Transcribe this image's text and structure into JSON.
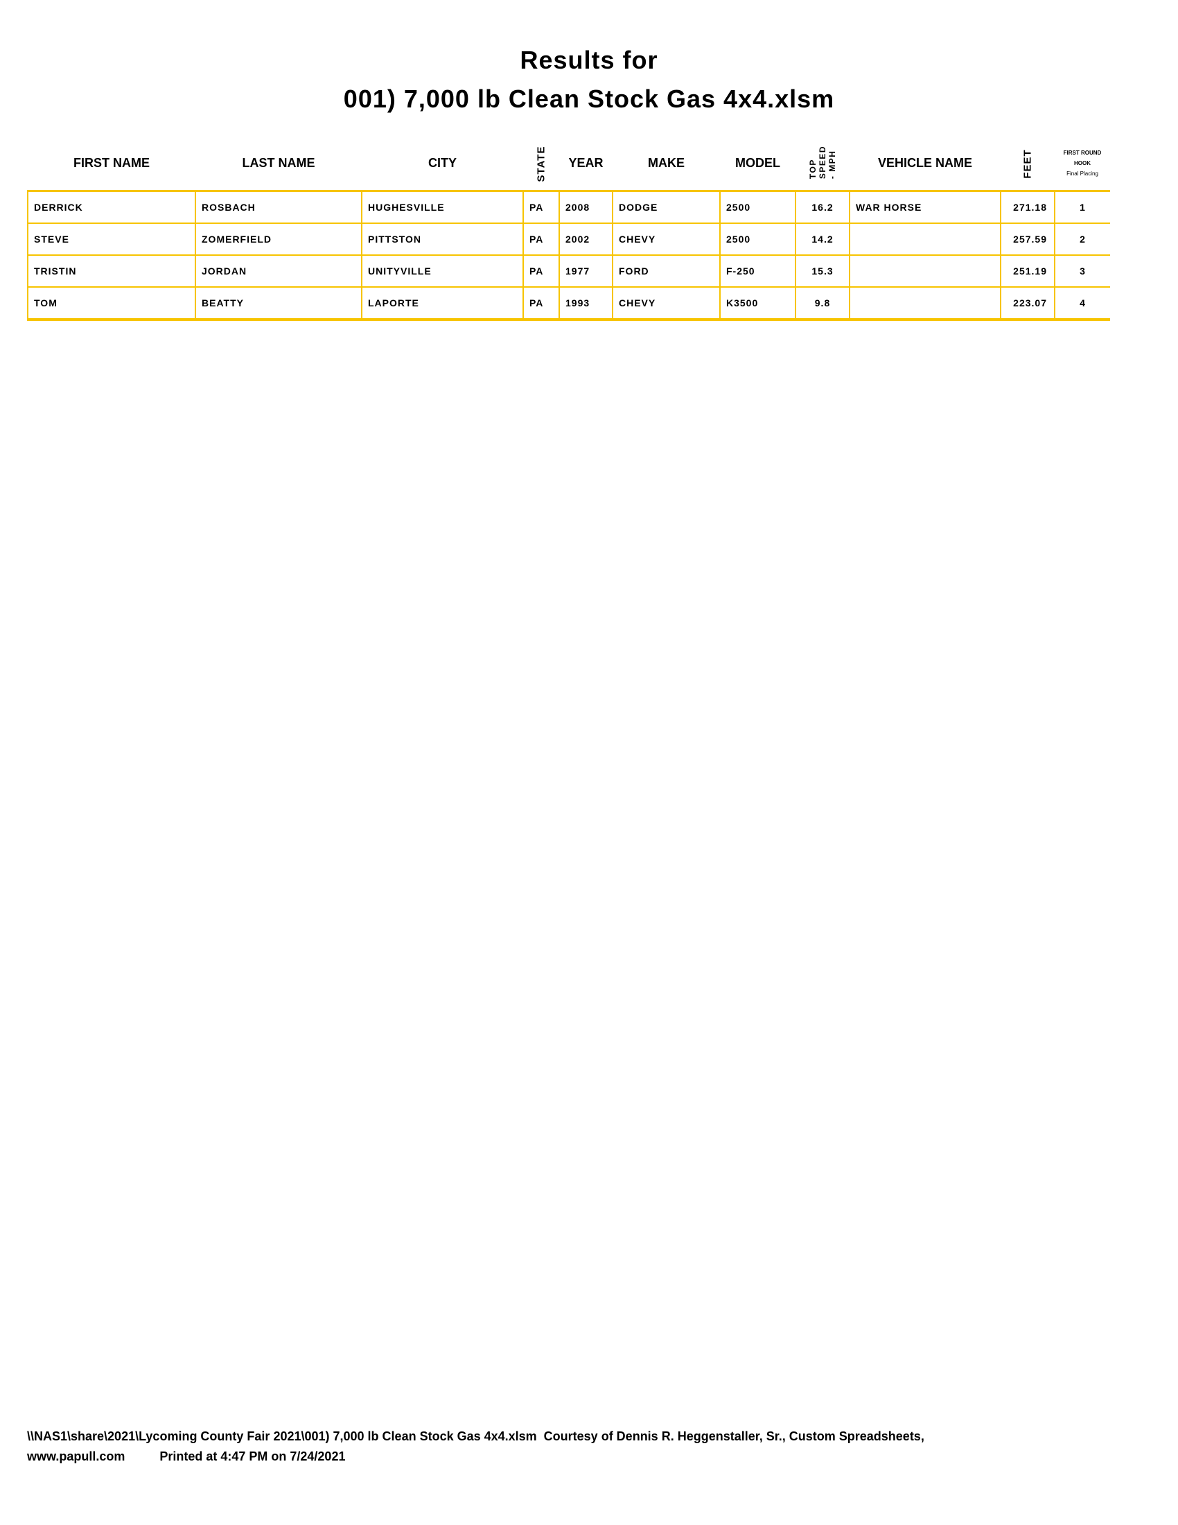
{
  "title_line1": "Results for",
  "title_line2": "001) 7,000 lb Clean Stock Gas 4x4.xlsm",
  "columns": {
    "first_name": "FIRST NAME",
    "last_name": "LAST NAME",
    "city": "CITY",
    "state": "STATE",
    "year": "YEAR",
    "make": "MAKE",
    "model": "MODEL",
    "top_speed": "TOP\nSPEED\n- MPH",
    "vehicle_name": "VEHICLE NAME",
    "feet": "FEET",
    "hook_line1": "FIRST ROUND",
    "hook_line2": "HOOK",
    "hook_line3": "Final Placing"
  },
  "rows": [
    {
      "first": "DERRICK",
      "last": "ROSBACH",
      "city": "HUGHESVILLE",
      "state": "PA",
      "year": "2008",
      "make": "DODGE",
      "model": "2500",
      "speed": "16.2",
      "vehicle": "WAR HORSE",
      "feet": "271.18",
      "place": "1"
    },
    {
      "first": "STEVE",
      "last": "ZOMERFIELD",
      "city": "PITTSTON",
      "state": "PA",
      "year": "2002",
      "make": "CHEVY",
      "model": "2500",
      "speed": "14.2",
      "vehicle": "",
      "feet": "257.59",
      "place": "2"
    },
    {
      "first": "TRISTIN",
      "last": "JORDAN",
      "city": "UNITYVILLE",
      "state": "PA",
      "year": "1977",
      "make": "FORD",
      "model": "F-250",
      "speed": "15.3",
      "vehicle": "",
      "feet": "251.19",
      "place": "3"
    },
    {
      "first": "TOM",
      "last": "BEATTY",
      "city": "LAPORTE",
      "state": "PA",
      "year": "1993",
      "make": "CHEVY",
      "model": "K3500",
      "speed": "9.8",
      "vehicle": "",
      "feet": "223.07",
      "place": "4"
    }
  ],
  "footer_line1": "\\\\NAS1\\share\\2021\\Lycoming County Fair 2021\\001) 7,000 lb Clean Stock Gas 4x4.xlsm  Courtesy of Dennis R. Heggenstaller, Sr., Custom Spreadsheets,",
  "footer_line2": "www.papull.com          Printed at 4:47 PM on 7/24/2021",
  "border_color": "#f7c400"
}
